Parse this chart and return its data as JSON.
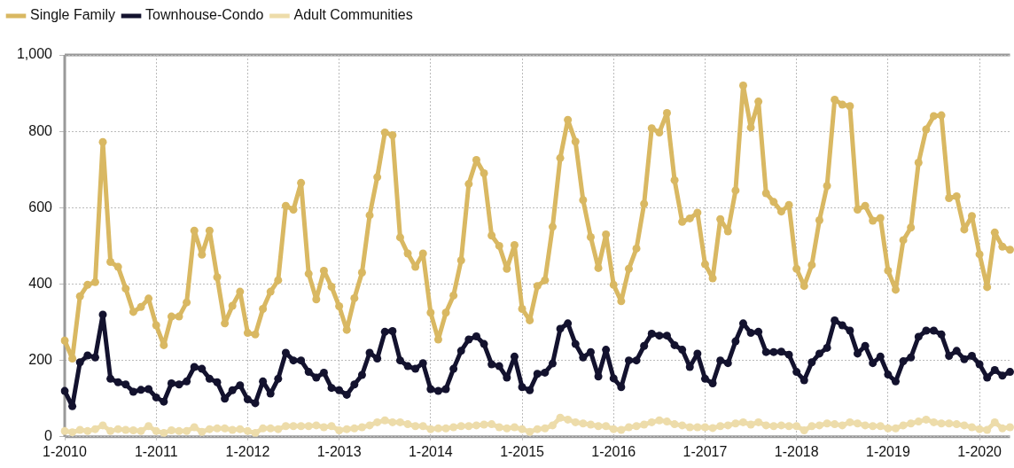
{
  "chart_data": {
    "type": "line",
    "categories": [
      "1-2010",
      null,
      null,
      null,
      null,
      null,
      null,
      null,
      null,
      null,
      null,
      null,
      "1-2011",
      null,
      null,
      null,
      null,
      null,
      null,
      null,
      null,
      null,
      null,
      null,
      "1-2012",
      null,
      null,
      null,
      null,
      null,
      null,
      null,
      null,
      null,
      null,
      null,
      "1-2013",
      null,
      null,
      null,
      null,
      null,
      null,
      null,
      null,
      null,
      null,
      null,
      "1-2014",
      null,
      null,
      null,
      null,
      null,
      null,
      null,
      null,
      null,
      null,
      null,
      "1-2015",
      null,
      null,
      null,
      null,
      null,
      null,
      null,
      null,
      null,
      null,
      null,
      "1-2016",
      null,
      null,
      null,
      null,
      null,
      null,
      null,
      null,
      null,
      null,
      null,
      "1-2017",
      null,
      null,
      null,
      null,
      null,
      null,
      null,
      null,
      null,
      null,
      null,
      "1-2018",
      null,
      null,
      null,
      null,
      null,
      null,
      null,
      null,
      null,
      null,
      null,
      "1-2019",
      null,
      null,
      null,
      null,
      null,
      null,
      null,
      null,
      null,
      null,
      null,
      "1-2020",
      null,
      null,
      null,
      null
    ],
    "series": [
      {
        "name": "Single Family",
        "color": "#d9b862",
        "values": [
          252,
          205,
          368,
          398,
          405,
          772,
          458,
          445,
          388,
          327,
          340,
          362,
          292,
          240,
          315,
          315,
          352,
          540,
          477,
          540,
          418,
          297,
          343,
          380,
          272,
          268,
          335,
          380,
          410,
          605,
          595,
          665,
          427,
          360,
          435,
          393,
          342,
          280,
          363,
          430,
          580,
          680,
          797,
          790,
          522,
          480,
          445,
          480,
          325,
          255,
          325,
          370,
          462,
          662,
          725,
          690,
          527,
          500,
          440,
          502,
          335,
          305,
          395,
          410,
          550,
          730,
          830,
          773,
          620,
          523,
          442,
          530,
          398,
          355,
          440,
          493,
          610,
          808,
          797,
          848,
          672,
          563,
          572,
          587,
          452,
          415,
          570,
          538,
          645,
          920,
          810,
          878,
          638,
          615,
          590,
          607,
          440,
          395,
          450,
          567,
          657,
          883,
          870,
          866,
          595,
          605,
          566,
          573,
          435,
          385,
          515,
          548,
          718,
          805,
          840,
          842,
          625,
          630,
          543,
          578,
          478,
          392,
          535,
          498,
          490
        ]
      },
      {
        "name": "Townhouse-Condo",
        "color": "#13122e",
        "values": [
          120,
          80,
          195,
          213,
          208,
          320,
          152,
          143,
          137,
          118,
          123,
          125,
          103,
          92,
          140,
          137,
          145,
          183,
          178,
          152,
          143,
          100,
          122,
          135,
          98,
          88,
          145,
          113,
          152,
          220,
          200,
          200,
          170,
          155,
          168,
          128,
          122,
          110,
          137,
          162,
          220,
          205,
          275,
          277,
          200,
          185,
          178,
          193,
          125,
          120,
          125,
          178,
          225,
          255,
          263,
          243,
          190,
          185,
          155,
          210,
          130,
          122,
          165,
          168,
          192,
          283,
          297,
          243,
          208,
          222,
          158,
          228,
          153,
          130,
          200,
          200,
          238,
          270,
          265,
          265,
          240,
          228,
          183,
          218,
          152,
          140,
          200,
          193,
          250,
          297,
          272,
          275,
          222,
          222,
          223,
          215,
          170,
          148,
          195,
          218,
          233,
          305,
          292,
          278,
          218,
          238,
          193,
          210,
          163,
          145,
          198,
          208,
          262,
          278,
          278,
          268,
          212,
          225,
          203,
          212,
          190,
          155,
          175,
          160,
          170
        ]
      },
      {
        "name": "Adult Communities",
        "color": "#eddcaa",
        "values": [
          15,
          12,
          18,
          15,
          20,
          30,
          15,
          20,
          18,
          17,
          15,
          28,
          15,
          10,
          17,
          15,
          15,
          25,
          13,
          20,
          22,
          22,
          18,
          20,
          15,
          10,
          22,
          22,
          20,
          28,
          28,
          28,
          28,
          30,
          25,
          28,
          17,
          20,
          22,
          25,
          30,
          38,
          43,
          38,
          38,
          33,
          28,
          28,
          20,
          22,
          22,
          25,
          28,
          28,
          30,
          32,
          33,
          25,
          22,
          25,
          20,
          13,
          20,
          22,
          30,
          50,
          45,
          38,
          35,
          32,
          28,
          28,
          20,
          18,
          25,
          28,
          32,
          38,
          43,
          40,
          33,
          30,
          25,
          25,
          25,
          23,
          28,
          30,
          35,
          38,
          32,
          38,
          30,
          28,
          30,
          28,
          28,
          17,
          28,
          30,
          35,
          33,
          30,
          38,
          35,
          30,
          28,
          28,
          22,
          22,
          30,
          35,
          40,
          45,
          38,
          35,
          35,
          33,
          30,
          25,
          20,
          18,
          38,
          22,
          25
        ]
      }
    ],
    "ylim": [
      0,
      1000
    ],
    "yticks": [
      0,
      200,
      400,
      600,
      800,
      {
        "value": 1000,
        "label": "1,000"
      }
    ],
    "grid": true,
    "legend": "top left",
    "marker": "circle",
    "line_style": "solid"
  }
}
